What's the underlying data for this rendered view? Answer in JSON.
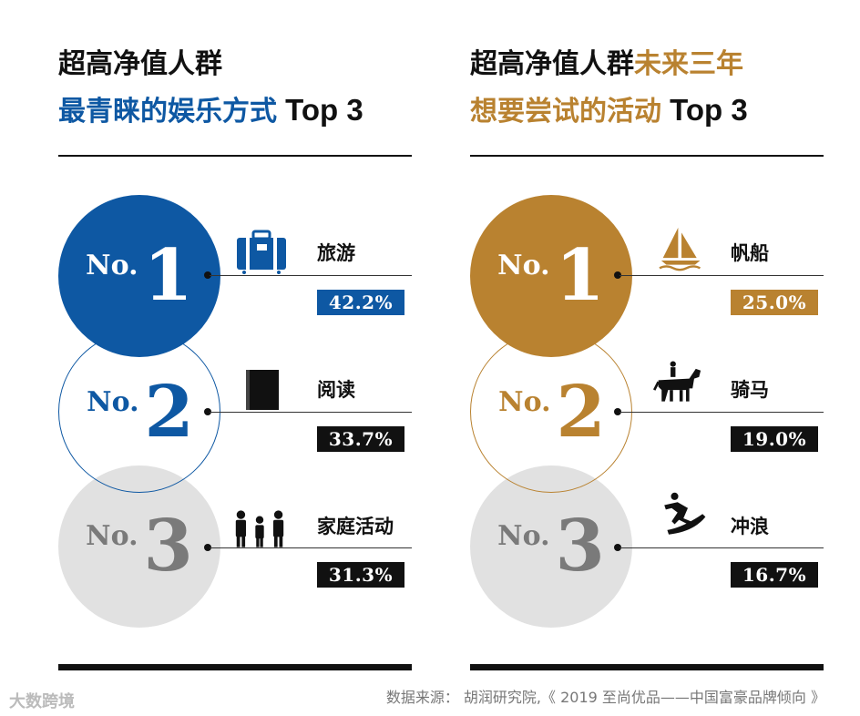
{
  "colors": {
    "blue": "#0e58a3",
    "gold": "#b98230",
    "gray_fill": "#e1e1e1",
    "gray_text": "#7a7a7a",
    "black": "#111111"
  },
  "left": {
    "title_line1": "超高净值人群",
    "title_line2_accent": "最青睐的娱乐方式",
    "title_line2_suffix": " Top 3",
    "rank_prefix": "No.",
    "items": [
      {
        "rank": "1",
        "label": "旅游",
        "percent": "42.2%",
        "icon": "luggage-icon"
      },
      {
        "rank": "2",
        "label": "阅读",
        "percent": "33.7%",
        "icon": "book-icon"
      },
      {
        "rank": "3",
        "label": "家庭活动",
        "percent": "31.3%",
        "icon": "family-icon"
      }
    ]
  },
  "right": {
    "title_line1_black": "超高净值人群",
    "title_line1_accent": "未来三年",
    "title_line2_accent": "想要尝试的活动",
    "title_line2_suffix": " Top 3",
    "rank_prefix": "No.",
    "items": [
      {
        "rank": "1",
        "label": "帆船",
        "percent": "25.0%",
        "icon": "sailboat-icon"
      },
      {
        "rank": "2",
        "label": "骑马",
        "percent": "19.0%",
        "icon": "horse-rider-icon"
      },
      {
        "rank": "3",
        "label": "冲浪",
        "percent": "16.7%",
        "icon": "surfer-icon"
      }
    ]
  },
  "source": "数据来源： 胡润研究院,《 2019 至尚优品——中国富豪品牌倾向 》",
  "watermark": "大数跨境"
}
